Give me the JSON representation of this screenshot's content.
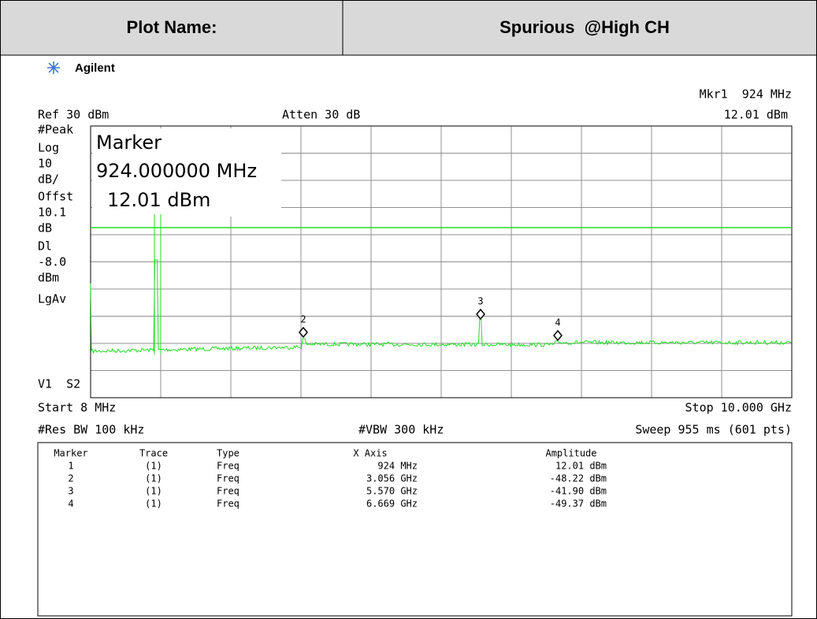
{
  "header": {
    "label": "Plot Name:",
    "value": "Spurious  @High CH"
  },
  "analyzer": {
    "brand": "Agilent",
    "marker_readout": "Mkr1  924 MHz",
    "ref": "Ref 30 dBm",
    "atten": "Atten 30 dB",
    "marker_amplitude": "12.01 dBm",
    "left_labels": [
      "#Peak",
      "Log",
      "10",
      "dB/",
      "Offst",
      "10.1",
      "dB",
      "Dl",
      "-8.0",
      "dBm",
      "LgAv",
      "V1  S2"
    ],
    "marker_box": {
      "title": "Marker",
      "frequency": "924.000000 MHz",
      "amplitude": "12.01 dBm"
    },
    "plot_markers": [
      "2",
      "3",
      "4"
    ],
    "start": "Start 8 MHz",
    "stop": "Stop 10.000 GHz",
    "res_bw": "#Res BW 100 kHz",
    "vbw": "#VBW 300 kHz",
    "sweep": "Sweep 955 ms (601 pts)"
  },
  "marker_table": {
    "columns": [
      "Marker",
      "Trace",
      "Type",
      "X Axis",
      "Amplitude"
    ],
    "rows": [
      [
        "1",
        "(1)",
        "Freq",
        "924 MHz",
        "12.01 dBm"
      ],
      [
        "2",
        "(1)",
        "Freq",
        "3.056 GHz",
        "-48.22 dBm"
      ],
      [
        "3",
        "(1)",
        "Freq",
        "5.570 GHz",
        "-41.90 dBm"
      ],
      [
        "4",
        "(1)",
        "Freq",
        "6.669 GHz",
        "-49.37 dBm"
      ]
    ]
  }
}
